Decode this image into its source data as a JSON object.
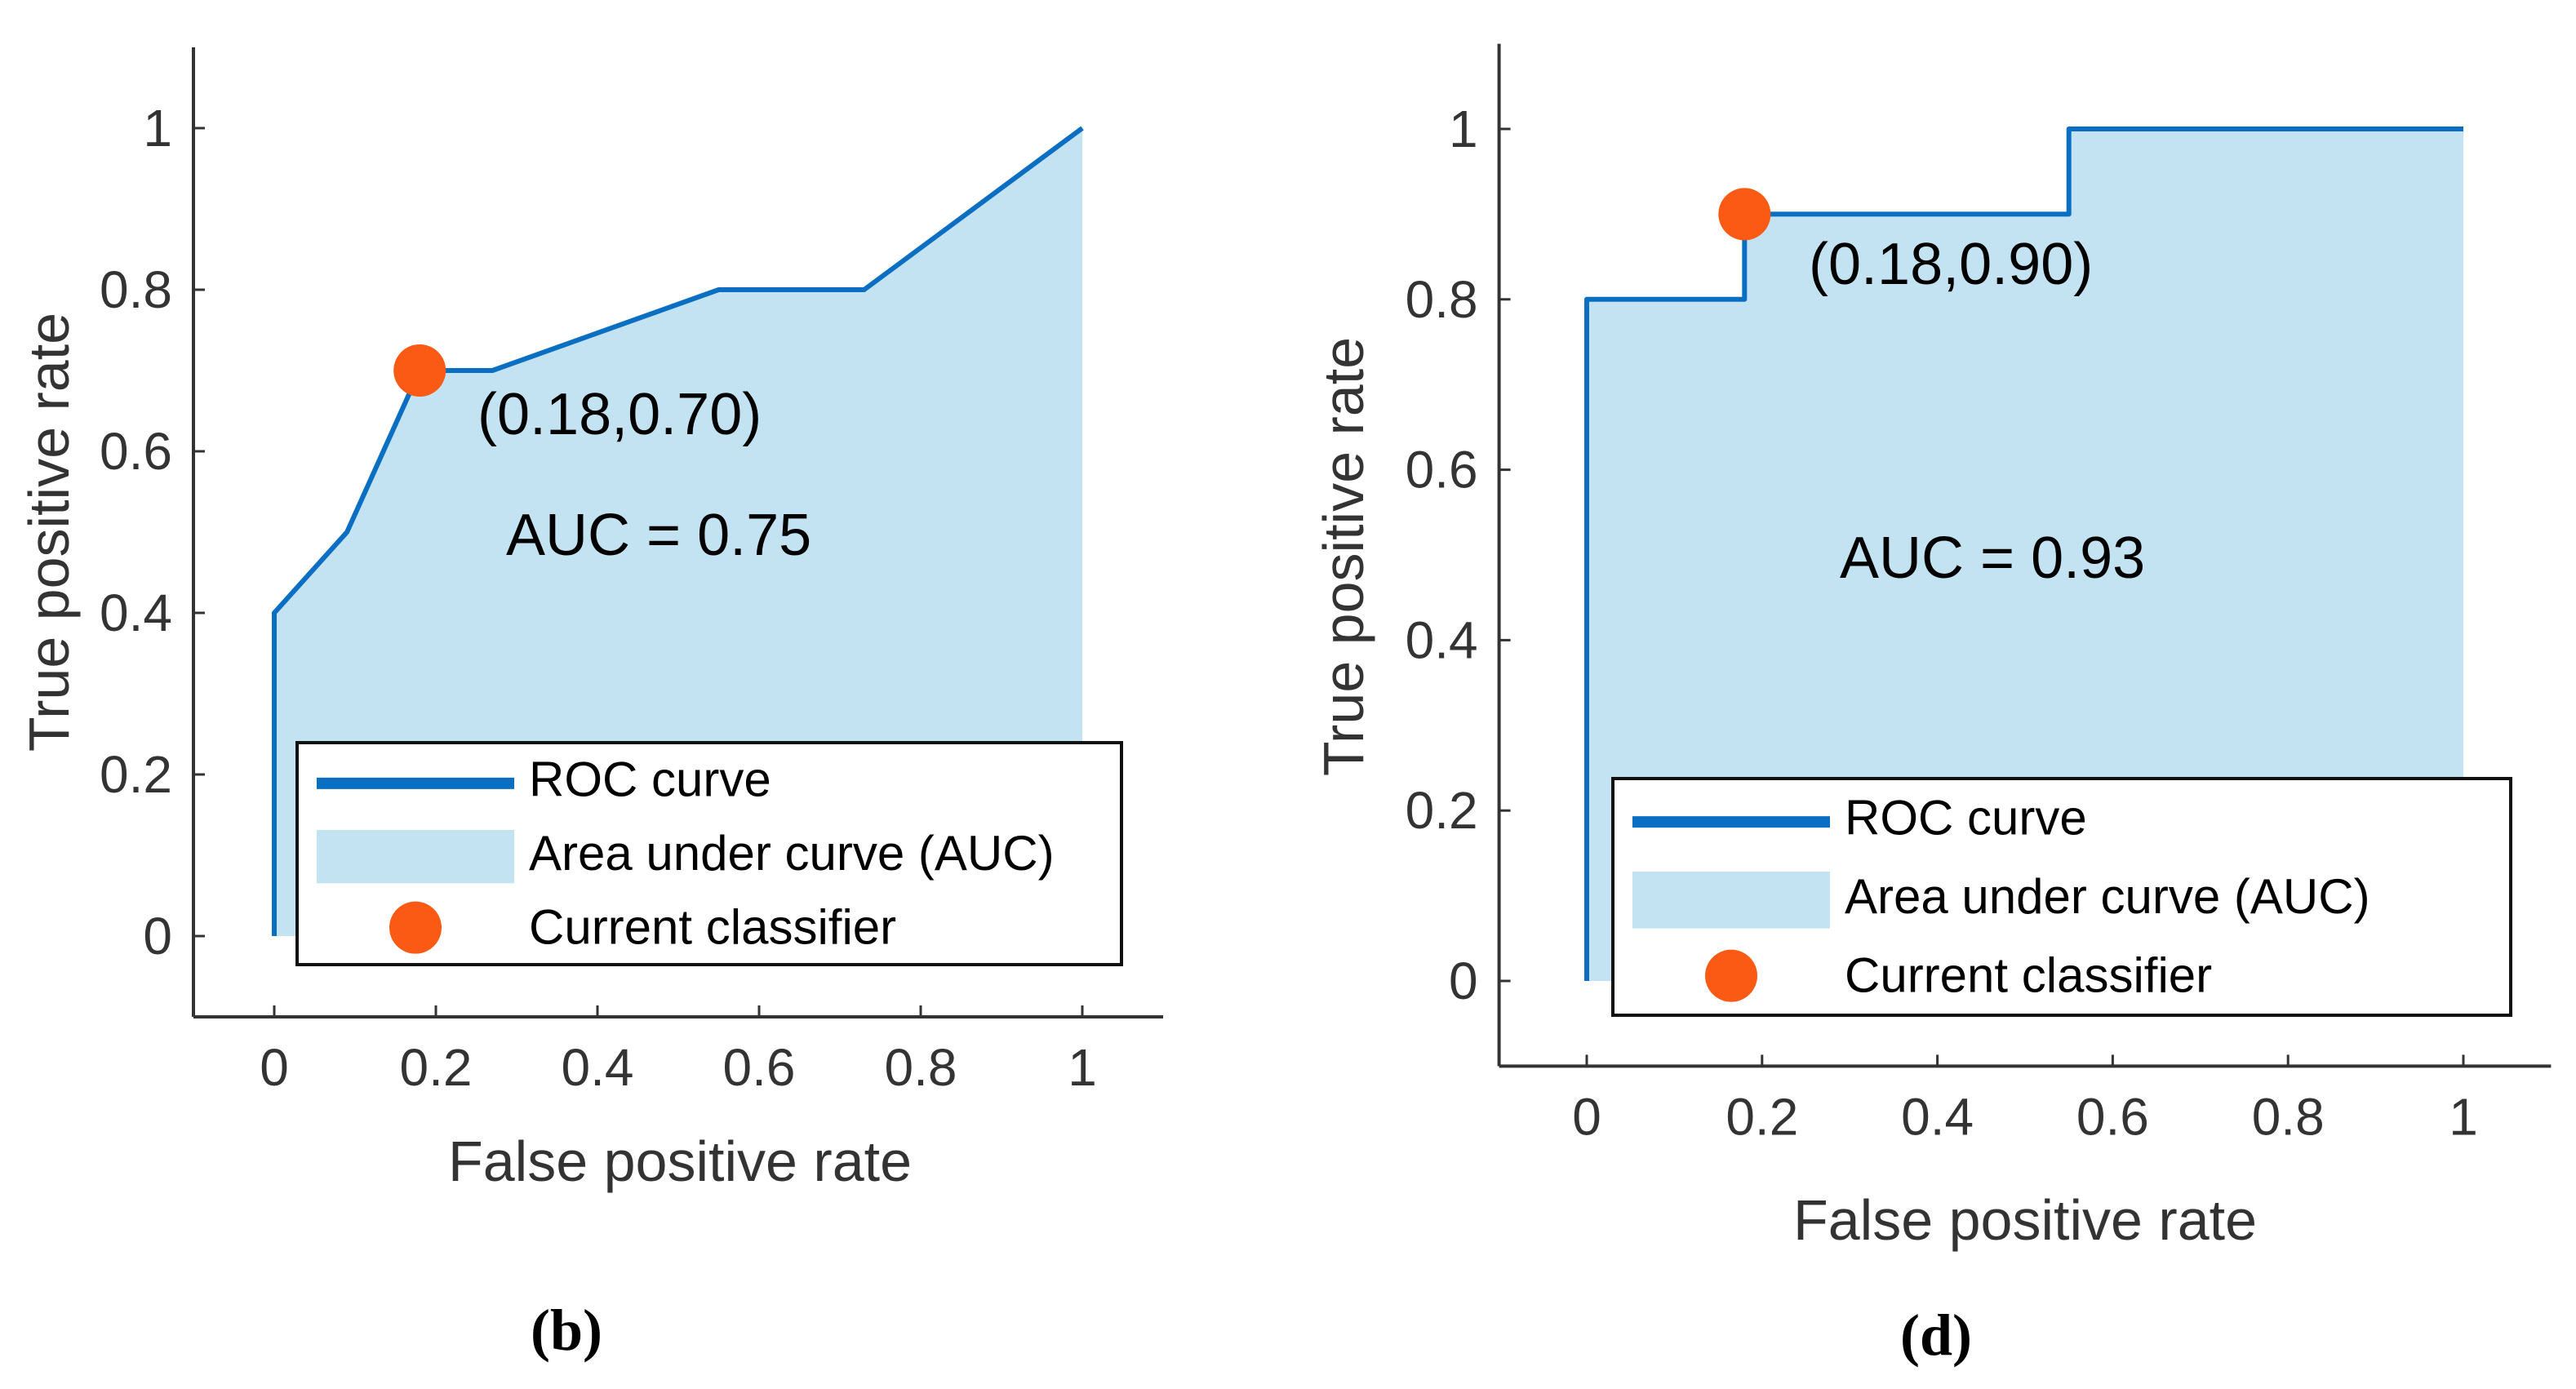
{
  "colors": {
    "roc_line": "#0a6fc2",
    "auc_fill": "#c3e3f3",
    "classifier_marker": "#fa5a14",
    "axis": "#333333"
  },
  "chart_data": [
    {
      "type": "area",
      "caption_letter": "b",
      "caption_open": "(",
      "caption_close": ")",
      "xlabel": "False positive rate",
      "ylabel": "True positive rate",
      "xlim": [
        -0.1,
        1.1
      ],
      "ylim": [
        -0.1,
        1.1
      ],
      "xticks": [
        0,
        0.2,
        0.4,
        0.6,
        0.8,
        1
      ],
      "xtick_labels": [
        "0",
        "0.2",
        "0.4",
        "0.6",
        "0.8",
        "1"
      ],
      "yticks": [
        0,
        0.2,
        0.4,
        0.6,
        0.8,
        1
      ],
      "ytick_labels": [
        "0",
        "0.2",
        "0.4",
        "0.6",
        "0.8",
        "1"
      ],
      "roc_curve": {
        "x": [
          0,
          0,
          0.09,
          0.18,
          0.27,
          0.55,
          0.73,
          1
        ],
        "y": [
          0,
          0.4,
          0.5,
          0.7,
          0.7,
          0.8,
          0.8,
          1
        ]
      },
      "current_classifier": {
        "x": 0.18,
        "y": 0.7,
        "label": "(0.18,0.70)"
      },
      "auc_text": "AUC = 0.75",
      "legend": {
        "placement": "bottom-right",
        "entries": [
          "ROC curve",
          "Area under curve (AUC)",
          "Current classifier"
        ]
      }
    },
    {
      "type": "area",
      "caption_letter": "d",
      "caption_open": "(",
      "caption_close": ")",
      "xlabel": "False positive rate",
      "ylabel": "True positive rate",
      "xlim": [
        -0.1,
        1.1
      ],
      "ylim": [
        -0.1,
        1.1
      ],
      "xticks": [
        0,
        0.2,
        0.4,
        0.6,
        0.8,
        1
      ],
      "xtick_labels": [
        "0",
        "0.2",
        "0.4",
        "0.6",
        "0.8",
        "1"
      ],
      "yticks": [
        0,
        0.2,
        0.4,
        0.6,
        0.8,
        1
      ],
      "ytick_labels": [
        "0",
        "0.2",
        "0.4",
        "0.6",
        "0.8",
        "1"
      ],
      "roc_curve": {
        "x": [
          0,
          0,
          0.18,
          0.18,
          0.55,
          0.55,
          1
        ],
        "y": [
          0,
          0.8,
          0.8,
          0.9,
          0.9,
          1,
          1
        ]
      },
      "current_classifier": {
        "x": 0.18,
        "y": 0.9,
        "label": "(0.18,0.90)"
      },
      "auc_text": "AUC = 0.93",
      "legend": {
        "placement": "bottom-right",
        "entries": [
          "ROC curve",
          "Area under curve (AUC)",
          "Current classifier"
        ]
      }
    }
  ]
}
